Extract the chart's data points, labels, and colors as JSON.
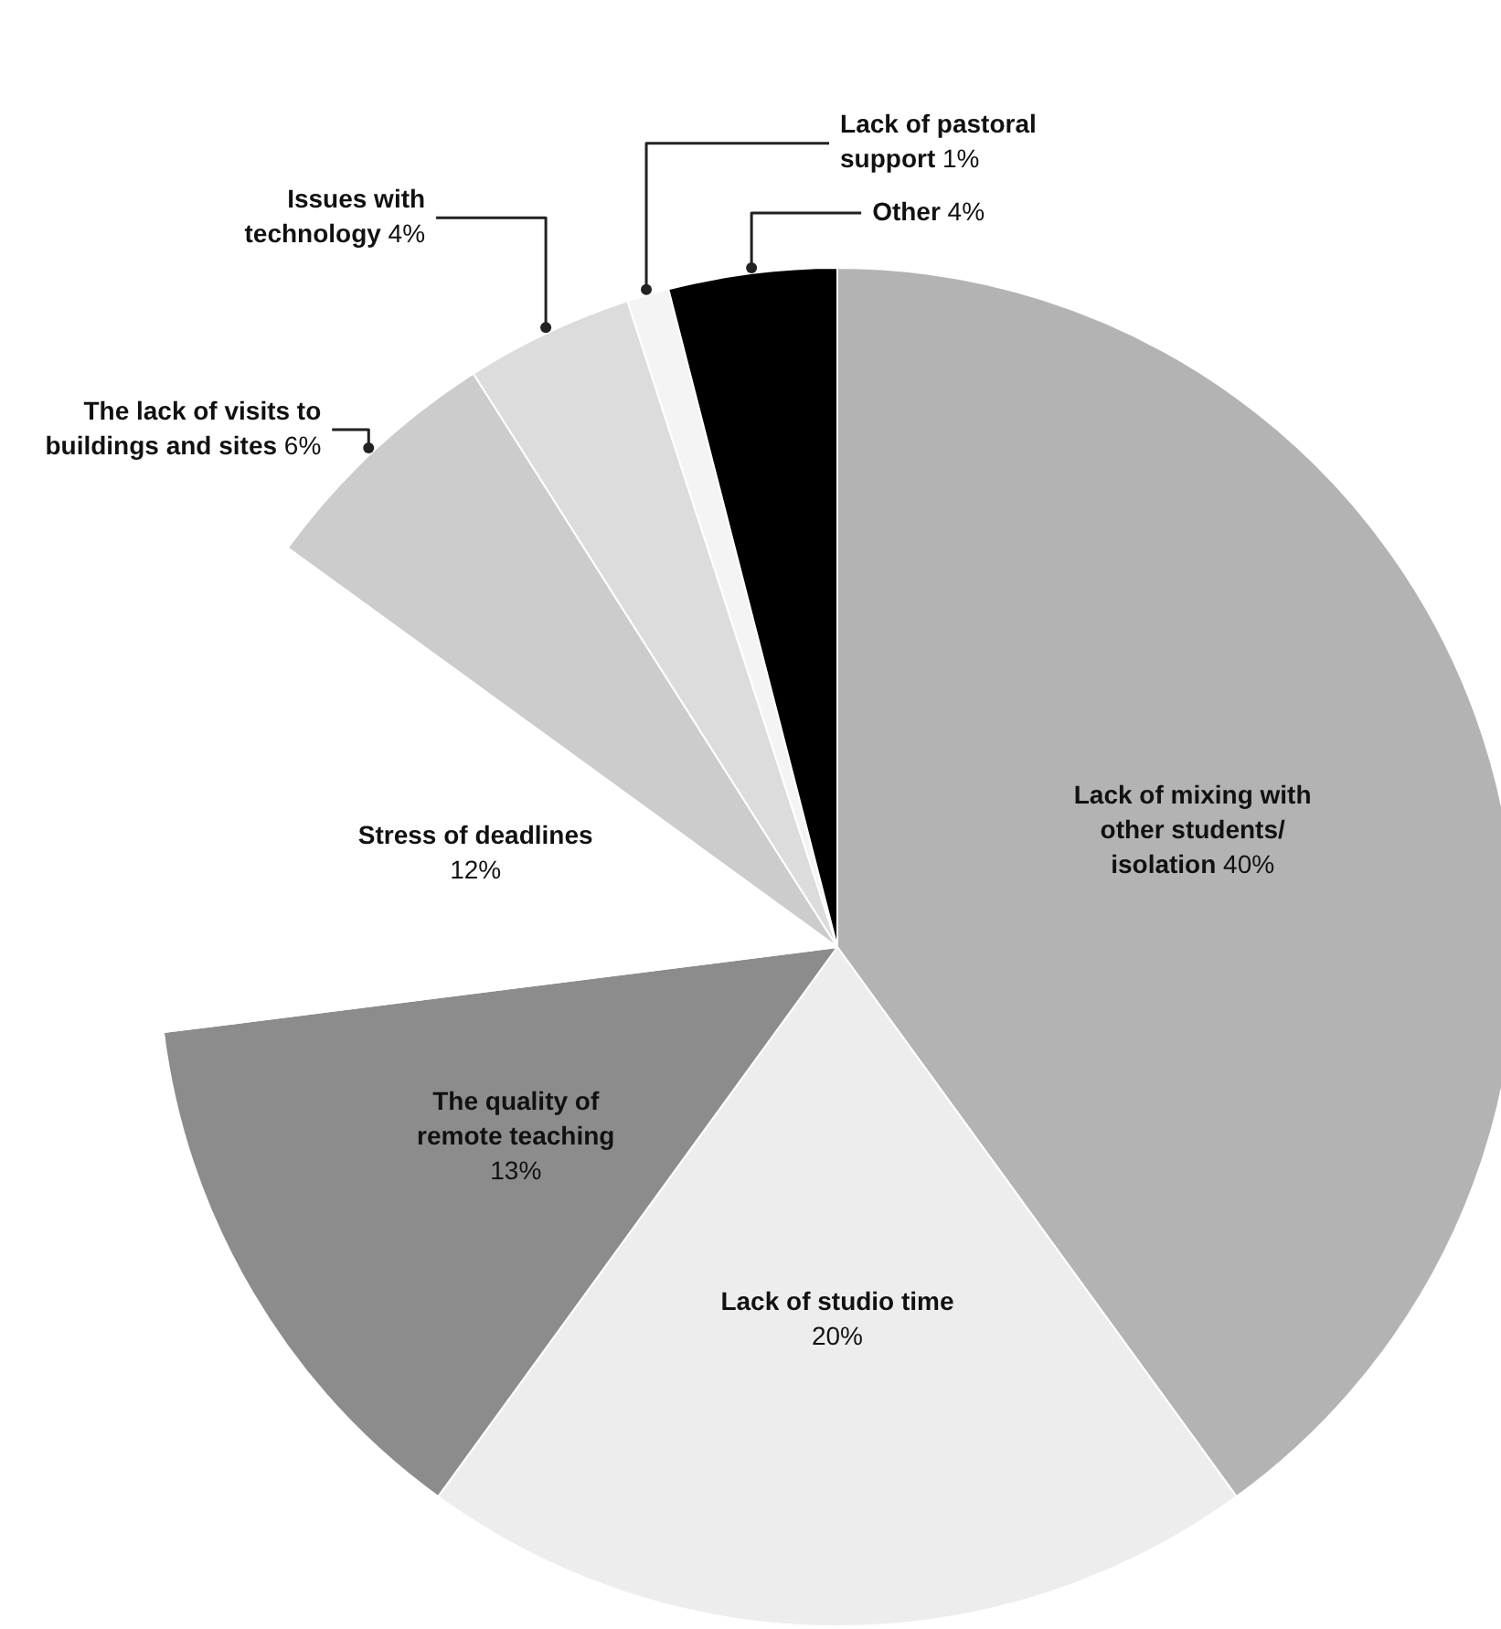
{
  "chart_data": {
    "type": "pie",
    "categories": [
      "Lack of mixing with other students/ isolation",
      "Lack of studio time",
      "The quality of remote teaching",
      "Stress of deadlines",
      "The lack of visits to buildings and sites",
      "Issues with technology",
      "Lack of pastoral support",
      "Other"
    ],
    "values": [
      40,
      20,
      13,
      12,
      6,
      4,
      1,
      4
    ],
    "value_labels": [
      "40%",
      "20%",
      "13%",
      "12%",
      "6%",
      "4%",
      "1%",
      "4%"
    ],
    "colors": [
      "#b3b3b3",
      "#ededed",
      "#8c8c8c",
      "#ffffff",
      "#cccccc",
      "#dcdcdc",
      "#f4f4f4",
      "#000000"
    ],
    "legend": false
  }
}
